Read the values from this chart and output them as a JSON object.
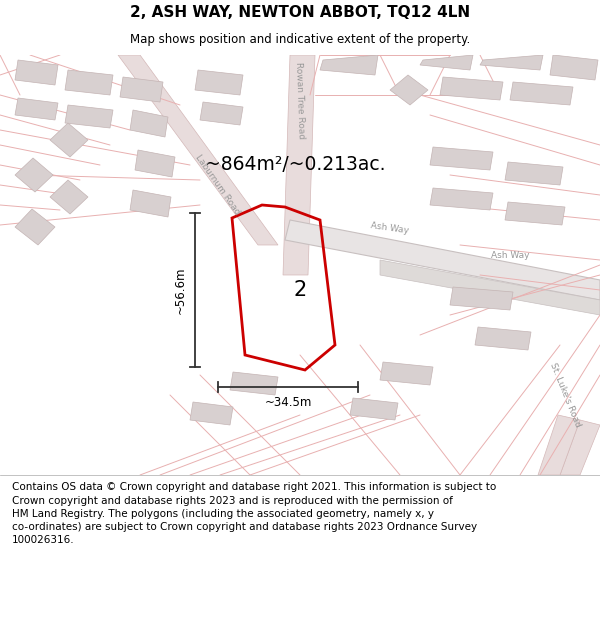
{
  "title": "2, ASH WAY, NEWTON ABBOT, TQ12 4LN",
  "subtitle": "Map shows position and indicative extent of the property.",
  "footer": "Contains OS data © Crown copyright and database right 2021. This information is subject to\nCrown copyright and database rights 2023 and is reproduced with the permission of\nHM Land Registry. The polygons (including the associated geometry, namely x, y\nco-ordinates) are subject to Crown copyright and database rights 2023 Ordnance Survey\n100026316.",
  "area_text": "~864m²/~0.213ac.",
  "width_text": "~34.5m",
  "height_text": "~56.6m",
  "label_text": "2",
  "map_bg": "#faf5f5",
  "property_color": "#cc0000",
  "street_line_color": "#e8b0b0",
  "road_fill": "#e8dcdc",
  "road_edge": "#d4b8b8",
  "building_fill": "#d8d0d0",
  "building_stroke": "#c4b4b4",
  "dim_color": "#333333",
  "road_label_color": "#999999",
  "title_fontsize": 11,
  "subtitle_fontsize": 8.5,
  "footer_fontsize": 7.5
}
